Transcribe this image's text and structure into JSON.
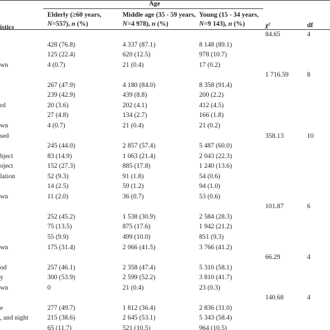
{
  "table": {
    "group_header": "Age",
    "columns": {
      "characteristics": "istics",
      "elderly": {
        "line1": "Elderly (≥60 years,",
        "n_label": "N",
        "line2_rest": "=557), ",
        "pct_label": "n",
        "pct_suffix": " (%)"
      },
      "middle": {
        "line1": "Middle age (35 - 59 years,",
        "n_label": "N",
        "line2_rest": "=4 978), ",
        "pct_label": "n",
        "pct_suffix": " (%)"
      },
      "young": {
        "line1": "Young (15 - 34 years,",
        "n_label": "N",
        "line2_rest": "=9 143), ",
        "pct_label": "n",
        "pct_suffix": " (%)"
      },
      "chi": "χ²",
      "df": "df"
    },
    "rows": [
      {
        "label": "",
        "elderly": "",
        "middle": "",
        "young": "",
        "chi": "84.65",
        "df": "4"
      },
      {
        "label": "",
        "elderly": "428 (76.8)",
        "middle": "4 337 (87.1)",
        "young": "8 148 (89.1)",
        "chi": "",
        "df": ""
      },
      {
        "label": "",
        "elderly": "125 (22.4)",
        "middle": "620 (12.5)",
        "young": "978 (10.7)",
        "chi": "",
        "df": ""
      },
      {
        "label": "wn",
        "elderly": "4 (0.7)",
        "middle": "21 (0.4)",
        "young": "17 (0.2)",
        "chi": "",
        "df": ""
      },
      {
        "label": "",
        "elderly": "",
        "middle": "",
        "young": "",
        "chi": "1 716.59",
        "df": "8"
      },
      {
        "label": "",
        "elderly": "267 (47.9)",
        "middle": "4 180 (84.0)",
        "young": "8 358 (91.4)",
        "chi": "",
        "df": ""
      },
      {
        "label": "",
        "elderly": "239 (42.9)",
        "middle": "439 (8.8)",
        "young": "200 (2.2)",
        "chi": "",
        "df": ""
      },
      {
        "label": "rd",
        "elderly": "20 (3.6)",
        "middle": "202 (4.1)",
        "young": "412 (4.5)",
        "chi": "",
        "df": ""
      },
      {
        "label": "",
        "elderly": "27 (4.8)",
        "middle": "134 (2.7)",
        "young": "166 (1.8)",
        "chi": "",
        "df": ""
      },
      {
        "label": "wn",
        "elderly": "4 (0.7)",
        "middle": "21 (0.4)",
        "young": "21 (0.2)",
        "chi": "",
        "df": ""
      },
      {
        "label": "sed",
        "elderly": "",
        "middle": "",
        "young": "",
        "chi": "358.13",
        "df": "10"
      },
      {
        "label": "",
        "elderly": "245 (44.0)",
        "middle": "2 857 (57.4)",
        "young": "5 487 (60.0)",
        "chi": "",
        "df": ""
      },
      {
        "label": "bject",
        "elderly": "83 (14.9)",
        "middle": "1 063 (21.4)",
        "young": "2 043 (22.3)",
        "chi": "",
        "df": ""
      },
      {
        "label": "oject",
        "elderly": "152 (27.3)",
        "middle": "885 (17.8)",
        "young": "1 240 (13.6)",
        "chi": "",
        "df": ""
      },
      {
        "label": "lation",
        "elderly": "52 (9.3)",
        "middle": "91 (1.8)",
        "young": "54 (0.6)",
        "chi": "",
        "df": ""
      },
      {
        "label": "",
        "elderly": "14 (2.5)",
        "middle": "59 (1.2)",
        "young": "94 (1.0)",
        "chi": "",
        "df": ""
      },
      {
        "label": "wn",
        "elderly": "11 (2.0)",
        "middle": "36 (0.7)",
        "young": "53 (0.6)",
        "chi": "",
        "df": ""
      },
      {
        "label": "",
        "elderly": "",
        "middle": "",
        "young": "",
        "chi": "101.87",
        "df": "6"
      },
      {
        "label": "",
        "elderly": "252 (45.2)",
        "middle": "1 538 (30.9)",
        "young": "2 584 (28.3)",
        "chi": "",
        "df": ""
      },
      {
        "label": "",
        "elderly": "75 (13.5)",
        "middle": "875 (17.6)",
        "young": "1 942 (21.2)",
        "chi": "",
        "df": ""
      },
      {
        "label": "",
        "elderly": "55 (9.9)",
        "middle": "499 (10.0)",
        "young": "851 (9.3)",
        "chi": "",
        "df": ""
      },
      {
        "label": "wn",
        "elderly": "175 (31.4)",
        "middle": "2 066 (41.5)",
        "young": "3 766 (41.2)",
        "chi": "",
        "df": ""
      },
      {
        "label": "",
        "elderly": "",
        "middle": "",
        "young": "",
        "chi": "66.29",
        "df": "4"
      },
      {
        "label": "od",
        "elderly": "257 (46.1)",
        "middle": "2 358 (47.4)",
        "young": "5 310 (58.1)",
        "chi": "",
        "df": ""
      },
      {
        "label": "y",
        "elderly": "300 (53.9)",
        "middle": "2 599 (52.2)",
        "young": "3 810 (41.7)",
        "chi": "",
        "df": ""
      },
      {
        "label": "wn",
        "elderly": "0",
        "middle": "21 (0.4)",
        "young": "23 (0.3)",
        "chi": "",
        "df": ""
      },
      {
        "label": "",
        "elderly": "",
        "middle": "",
        "young": "",
        "chi": "140.68",
        "df": "4"
      },
      {
        "label": "e",
        "elderly": "277 (49.7)",
        "middle": "1 812 (36.4)",
        "young": "2 836 (31.0)",
        "chi": "",
        "df": ""
      },
      {
        "label": ", and night",
        "elderly": "215 (38.6)",
        "middle": "2 645 (53.1)",
        "young": "5 343 (58.4)",
        "chi": "",
        "df": ""
      },
      {
        "label": "",
        "elderly": "65 (11.7)",
        "middle": "521 (10.5)",
        "young": "964 (10.5)",
        "chi": "",
        "df": ""
      }
    ]
  }
}
